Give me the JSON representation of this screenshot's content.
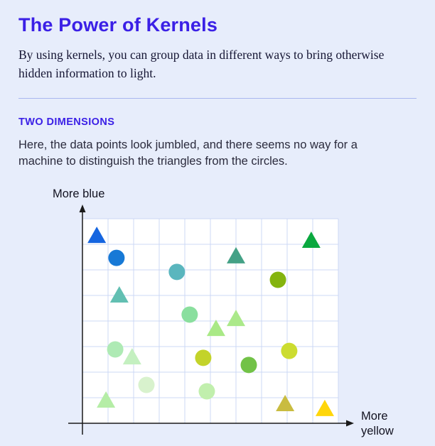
{
  "page": {
    "title": "The Power of Kernels",
    "intro": "By using kernels, you can group data in different ways to bring otherwise hidden information to light.",
    "section_label": "TWO DIMENSIONS",
    "section_text": "Here, the data points look jumbled, and there seems no way for a machine to distinguish the triangles from the circles."
  },
  "colors": {
    "background": "#e7edfb",
    "accent": "#3b20e6",
    "divider": "#a9b6ef",
    "plot_bg": "#ffffff",
    "grid": "#ccd8f5",
    "axis": "#1a1a1a"
  },
  "chart_data": {
    "type": "scatter",
    "title": "",
    "xlabel": "More yellow",
    "ylabel": "More blue",
    "x_range": [
      0,
      10
    ],
    "y_range": [
      0,
      8
    ],
    "grid": true,
    "legend": "none",
    "points": [
      {
        "x": 0.56,
        "y": 7.33,
        "shape": "triangle",
        "color": "#1565e0"
      },
      {
        "x": 1.33,
        "y": 6.47,
        "shape": "circle",
        "color": "#1779d6"
      },
      {
        "x": 3.69,
        "y": 5.92,
        "shape": "circle",
        "color": "#5ab6be"
      },
      {
        "x": 6.0,
        "y": 6.53,
        "shape": "triangle",
        "color": "#44a186"
      },
      {
        "x": 8.94,
        "y": 7.14,
        "shape": "triangle",
        "color": "#0aa83f"
      },
      {
        "x": 7.64,
        "y": 5.61,
        "shape": "circle",
        "color": "#84b40e"
      },
      {
        "x": 1.44,
        "y": 5.0,
        "shape": "triangle",
        "color": "#62bfb2"
      },
      {
        "x": 4.19,
        "y": 4.25,
        "shape": "circle",
        "color": "#8adf9e"
      },
      {
        "x": 5.22,
        "y": 3.69,
        "shape": "triangle",
        "color": "#a9e986"
      },
      {
        "x": 6.0,
        "y": 4.08,
        "shape": "triangle",
        "color": "#abe98a"
      },
      {
        "x": 1.28,
        "y": 2.89,
        "shape": "circle",
        "color": "#aeeab4"
      },
      {
        "x": 1.94,
        "y": 2.58,
        "shape": "triangle",
        "color": "#c4f0c0"
      },
      {
        "x": 4.72,
        "y": 2.56,
        "shape": "circle",
        "color": "#c3d32a"
      },
      {
        "x": 6.5,
        "y": 2.28,
        "shape": "circle",
        "color": "#72c247"
      },
      {
        "x": 8.08,
        "y": 2.83,
        "shape": "circle",
        "color": "#ccdc30"
      },
      {
        "x": 2.5,
        "y": 1.5,
        "shape": "circle",
        "color": "#d8f2cd"
      },
      {
        "x": 4.86,
        "y": 1.25,
        "shape": "circle",
        "color": "#c1efad"
      },
      {
        "x": 0.92,
        "y": 0.89,
        "shape": "triangle",
        "color": "#b5eda6"
      },
      {
        "x": 7.92,
        "y": 0.75,
        "shape": "triangle",
        "color": "#c9bc40"
      },
      {
        "x": 9.47,
        "y": 0.56,
        "shape": "triangle",
        "color": "#ffd60a"
      }
    ]
  }
}
